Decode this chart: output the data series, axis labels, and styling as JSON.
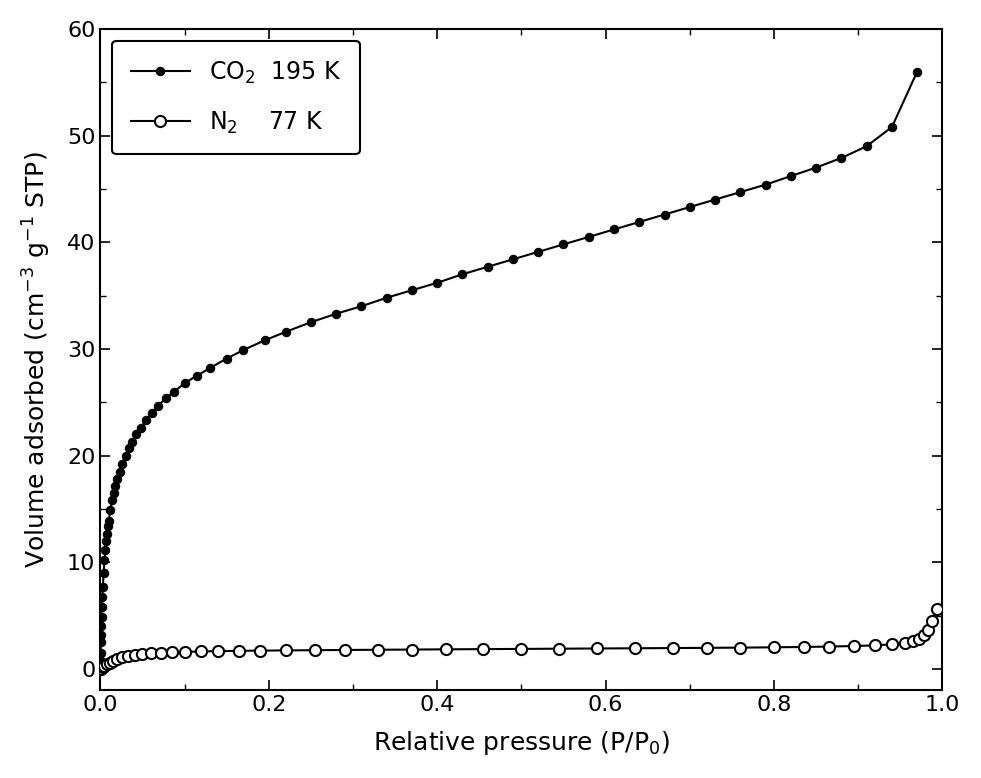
{
  "title": "",
  "xlabel": "Relative pressure (P/P$_0$)",
  "ylabel": "Volume adsorbed (cm$^{-3}$ g$^{-1}$ STP)",
  "xlim": [
    0.0,
    1.0
  ],
  "ylim": [
    -2,
    60
  ],
  "yticks": [
    0,
    10,
    20,
    30,
    40,
    50,
    60
  ],
  "xticks": [
    0.0,
    0.2,
    0.4,
    0.6,
    0.8,
    1.0
  ],
  "legend_co2": "CO$_2$  195 K",
  "legend_n2": "N$_2$    77 K",
  "co2_color": "#000000",
  "n2_color": "#000000",
  "background_color": "#ffffff",
  "co2_x": [
    0.0001,
    0.0003,
    0.0005,
    0.0008,
    0.001,
    0.0013,
    0.0016,
    0.002,
    0.0025,
    0.003,
    0.004,
    0.005,
    0.006,
    0.007,
    0.008,
    0.009,
    0.01,
    0.012,
    0.014,
    0.016,
    0.018,
    0.02,
    0.023,
    0.026,
    0.03,
    0.034,
    0.038,
    0.043,
    0.048,
    0.054,
    0.061,
    0.069,
    0.078,
    0.088,
    0.1,
    0.115,
    0.13,
    0.15,
    0.17,
    0.195,
    0.22,
    0.25,
    0.28,
    0.31,
    0.34,
    0.37,
    0.4,
    0.43,
    0.46,
    0.49,
    0.52,
    0.55,
    0.58,
    0.61,
    0.64,
    0.67,
    0.7,
    0.73,
    0.76,
    0.79,
    0.82,
    0.85,
    0.88,
    0.91,
    0.94,
    0.97
  ],
  "co2_y": [
    0.2,
    0.8,
    1.5,
    2.5,
    3.2,
    4.0,
    4.9,
    5.8,
    6.8,
    7.7,
    9.0,
    10.2,
    11.2,
    12.0,
    12.7,
    13.4,
    13.9,
    14.9,
    15.8,
    16.5,
    17.2,
    17.8,
    18.5,
    19.2,
    20.0,
    20.7,
    21.3,
    22.0,
    22.6,
    23.3,
    24.0,
    24.7,
    25.4,
    26.0,
    26.8,
    27.5,
    28.2,
    29.1,
    29.9,
    30.8,
    31.6,
    32.5,
    33.3,
    34.0,
    34.8,
    35.5,
    36.2,
    37.0,
    37.7,
    38.4,
    39.1,
    39.8,
    40.5,
    41.2,
    41.9,
    42.6,
    43.3,
    44.0,
    44.7,
    45.4,
    46.2,
    47.0,
    47.9,
    49.0,
    50.8,
    56.0
  ],
  "n2_x": [
    0.001,
    0.003,
    0.005,
    0.008,
    0.011,
    0.015,
    0.02,
    0.026,
    0.033,
    0.041,
    0.05,
    0.06,
    0.072,
    0.085,
    0.1,
    0.12,
    0.14,
    0.165,
    0.19,
    0.22,
    0.255,
    0.29,
    0.33,
    0.37,
    0.41,
    0.455,
    0.5,
    0.545,
    0.59,
    0.635,
    0.68,
    0.72,
    0.76,
    0.8,
    0.835,
    0.865,
    0.895,
    0.92,
    0.94,
    0.955,
    0.965,
    0.972,
    0.978,
    0.983,
    0.988,
    0.993
  ],
  "n2_y": [
    0.05,
    0.15,
    0.28,
    0.45,
    0.6,
    0.78,
    0.95,
    1.1,
    1.22,
    1.32,
    1.4,
    1.47,
    1.52,
    1.57,
    1.61,
    1.65,
    1.68,
    1.71,
    1.73,
    1.75,
    1.77,
    1.79,
    1.81,
    1.83,
    1.85,
    1.87,
    1.89,
    1.91,
    1.93,
    1.95,
    1.97,
    1.99,
    2.01,
    2.04,
    2.07,
    2.11,
    2.16,
    2.22,
    2.32,
    2.45,
    2.62,
    2.85,
    3.2,
    3.7,
    4.5,
    5.6
  ]
}
